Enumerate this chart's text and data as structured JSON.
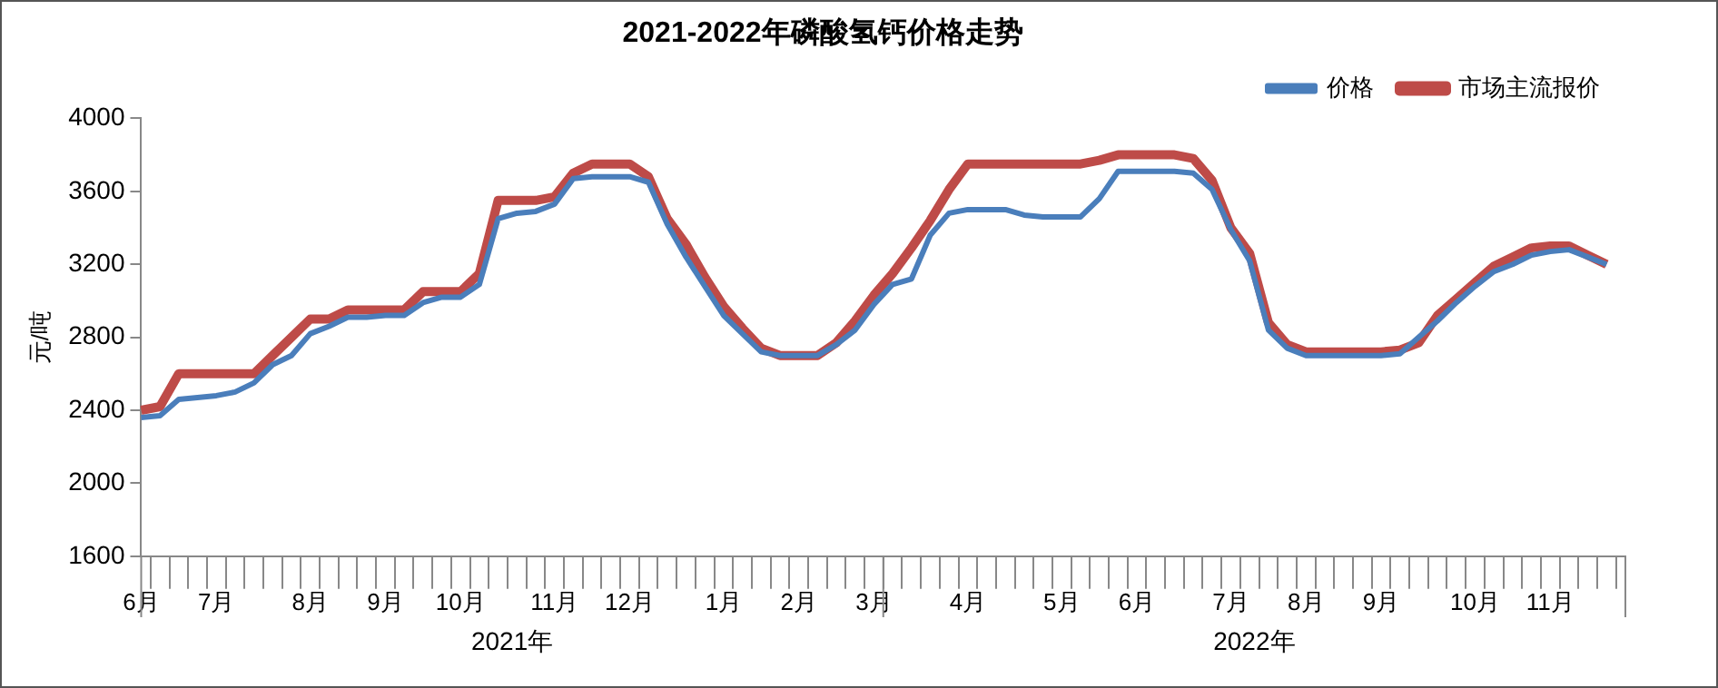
{
  "chart_data": {
    "type": "line",
    "title": "2021-2022年磷酸氢钙价格走势",
    "ylabel": "元/吨",
    "categories": [
      "6月",
      null,
      null,
      null,
      "7月",
      null,
      null,
      null,
      null,
      "8月",
      null,
      null,
      null,
      "9月",
      null,
      null,
      null,
      "10月",
      null,
      null,
      null,
      null,
      "11月",
      null,
      null,
      null,
      "12月",
      null,
      null,
      null,
      null,
      "1月",
      null,
      null,
      null,
      "2月",
      null,
      null,
      null,
      "3月",
      null,
      null,
      null,
      null,
      "4月",
      null,
      null,
      null,
      null,
      "5月",
      null,
      null,
      null,
      "6月",
      null,
      null,
      null,
      null,
      "7月",
      null,
      null,
      null,
      "8月",
      null,
      null,
      null,
      "9月",
      null,
      null,
      null,
      null,
      "10月",
      null,
      null,
      null,
      "11月",
      null,
      null,
      null,
      null
    ],
    "series": [
      {
        "name": "价格",
        "color": "#4a7ebb",
        "values": [
          2360,
          2370,
          2460,
          2470,
          2480,
          2500,
          2550,
          2650,
          2700,
          2820,
          2860,
          2910,
          2910,
          2920,
          2920,
          2990,
          3020,
          3020,
          3090,
          3450,
          3480,
          3490,
          3530,
          3670,
          3680,
          3680,
          3680,
          3650,
          3420,
          3240,
          3080,
          2920,
          2820,
          2720,
          2700,
          2700,
          2700,
          2760,
          2840,
          2980,
          3090,
          3120,
          3360,
          3480,
          3500,
          3500,
          3500,
          3470,
          3460,
          3460,
          3460,
          3560,
          3710,
          3710,
          3710,
          3710,
          3700,
          3610,
          3390,
          3220,
          2840,
          2740,
          2700,
          2700,
          2700,
          2700,
          2700,
          2710,
          2800,
          2890,
          2990,
          3080,
          3160,
          3200,
          3250,
          3270,
          3280,
          3240,
          3200,
          null
        ]
      },
      {
        "name": "市场主流报价",
        "color": "#be4b48",
        "values": [
          2400,
          2420,
          2600,
          2600,
          2600,
          2600,
          2600,
          2700,
          2800,
          2900,
          2900,
          2950,
          2950,
          2950,
          2950,
          3050,
          3050,
          3050,
          3150,
          3550,
          3550,
          3550,
          3570,
          3700,
          3750,
          3750,
          3750,
          3680,
          3450,
          3310,
          3130,
          2970,
          2850,
          2740,
          2700,
          2700,
          2700,
          2770,
          2890,
          3030,
          3150,
          3290,
          3440,
          3610,
          3750,
          3750,
          3750,
          3750,
          3750,
          3750,
          3750,
          3770,
          3800,
          3800,
          3800,
          3800,
          3780,
          3660,
          3400,
          3260,
          2880,
          2760,
          2720,
          2720,
          2720,
          2720,
          2720,
          2730,
          2770,
          2920,
          3010,
          3100,
          3190,
          3240,
          3290,
          3300,
          3300,
          3250,
          3200,
          null
        ]
      }
    ],
    "ylim": [
      1600,
      4000
    ],
    "yticks": [
      1600,
      2000,
      2400,
      2800,
      3200,
      3600,
      4000
    ],
    "legend": "top right",
    "grid": false,
    "marker": "none",
    "line_style": "solid",
    "annotations": [
      "2021年",
      "2022年"
    ]
  }
}
